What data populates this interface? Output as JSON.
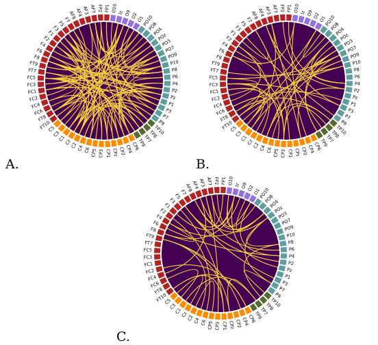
{
  "panels": [
    {
      "label": "A."
    },
    {
      "label": "B."
    },
    {
      "label": "C."
    }
  ],
  "nodes": [
    {
      "label": "FP2",
      "color": "#b22222"
    },
    {
      "label": "FP1",
      "color": "#b22222"
    },
    {
      "label": "O10",
      "color": "#9370db"
    },
    {
      "label": "Iz",
      "color": "#9370db"
    },
    {
      "label": "O9",
      "color": "#9370db"
    },
    {
      "label": "O2",
      "color": "#9370db"
    },
    {
      "label": "O1",
      "color": "#9370db"
    },
    {
      "label": "PO10",
      "color": "#5f9ea0"
    },
    {
      "label": "PO8",
      "color": "#5f9ea0"
    },
    {
      "label": "PO4",
      "color": "#5f9ea0"
    },
    {
      "label": "POz",
      "color": "#5f9ea0"
    },
    {
      "label": "PO3",
      "color": "#5f9ea0"
    },
    {
      "label": "PO7",
      "color": "#5f9ea0"
    },
    {
      "label": "PO9",
      "color": "#5f9ea0"
    },
    {
      "label": "P10",
      "color": "#5f9ea0"
    },
    {
      "label": "P8",
      "color": "#5f9ea0"
    },
    {
      "label": "P6",
      "color": "#5f9ea0"
    },
    {
      "label": "P4",
      "color": "#5f9ea0"
    },
    {
      "label": "P2",
      "color": "#5f9ea0"
    },
    {
      "label": "Pz",
      "color": "#5f9ea0"
    },
    {
      "label": "P1",
      "color": "#5f9ea0"
    },
    {
      "label": "P3",
      "color": "#5f9ea0"
    },
    {
      "label": "P7",
      "color": "#5f9ea0"
    },
    {
      "label": "P9",
      "color": "#5f9ea0"
    },
    {
      "label": "TP10",
      "color": "#556b2f"
    },
    {
      "label": "TP8",
      "color": "#556b2f"
    },
    {
      "label": "TP7",
      "color": "#556b2f"
    },
    {
      "label": "TP9",
      "color": "#556b2f"
    },
    {
      "label": "CP6",
      "color": "#ff8c00"
    },
    {
      "label": "CP4",
      "color": "#ff8c00"
    },
    {
      "label": "CP2",
      "color": "#ff8c00"
    },
    {
      "label": "CPz",
      "color": "#ff8c00"
    },
    {
      "label": "CP1",
      "color": "#ff8c00"
    },
    {
      "label": "CP3",
      "color": "#ff8c00"
    },
    {
      "label": "CP5",
      "color": "#ff8c00"
    },
    {
      "label": "C6",
      "color": "#ff8c00"
    },
    {
      "label": "C4",
      "color": "#ff8c00"
    },
    {
      "label": "C2",
      "color": "#ff8c00"
    },
    {
      "label": "Cz",
      "color": "#ff8c00"
    },
    {
      "label": "C1",
      "color": "#ff8c00"
    },
    {
      "label": "C3",
      "color": "#ff8c00"
    },
    {
      "label": "C5",
      "color": "#ff8c00"
    },
    {
      "label": "FT10",
      "color": "#b22222"
    },
    {
      "label": "FT8",
      "color": "#b22222"
    },
    {
      "label": "FC6",
      "color": "#b22222"
    },
    {
      "label": "FC4",
      "color": "#b22222"
    },
    {
      "label": "FC2",
      "color": "#b22222"
    },
    {
      "label": "FC1",
      "color": "#b22222"
    },
    {
      "label": "FC3",
      "color": "#b22222"
    },
    {
      "label": "FC5",
      "color": "#b22222"
    },
    {
      "label": "FT7",
      "color": "#b22222"
    },
    {
      "label": "FT9",
      "color": "#b22222"
    },
    {
      "label": "F8",
      "color": "#b22222"
    },
    {
      "label": "F6",
      "color": "#b22222"
    },
    {
      "label": "F4",
      "color": "#b22222"
    },
    {
      "label": "F2",
      "color": "#b22222"
    },
    {
      "label": "F1",
      "color": "#b22222"
    },
    {
      "label": "F3",
      "color": "#b22222"
    },
    {
      "label": "F5",
      "color": "#b22222"
    },
    {
      "label": "F7",
      "color": "#b22222"
    },
    {
      "label": "AF8",
      "color": "#b22222"
    },
    {
      "label": "AF4",
      "color": "#b22222"
    },
    {
      "label": "AF3",
      "color": "#b22222"
    },
    {
      "label": "AF7",
      "color": "#b22222"
    }
  ]
}
